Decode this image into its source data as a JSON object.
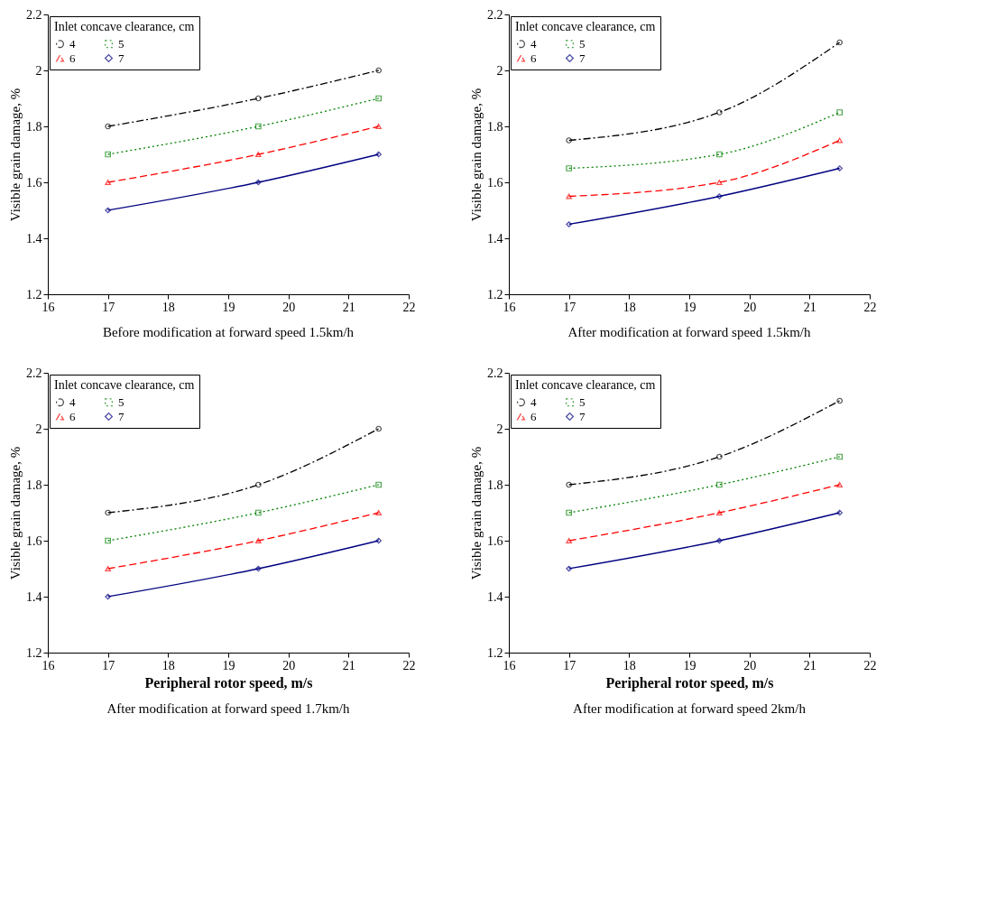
{
  "chart_data": [
    {
      "type": "line",
      "ylabel": "Visible grain damage, %",
      "legend_title": "Inlet concave clearance, cm",
      "legend": "top left",
      "grid": false,
      "x": [
        17,
        19.5,
        21.5
      ],
      "xlim": [
        16,
        22
      ],
      "xticks": [
        16,
        17,
        18,
        19,
        20,
        21,
        22
      ],
      "ylim": [
        1.2,
        2.2
      ],
      "yticks": [
        1.2,
        1.4,
        1.6,
        1.8,
        2,
        2.2
      ],
      "annotations": [
        "Before modification at forward speed 1.5km/h"
      ],
      "series": [
        {
          "name": "4",
          "color": "#000000",
          "line_style": "dashdot",
          "marker": "circle",
          "values": [
            1.8,
            1.9,
            2.0
          ]
        },
        {
          "name": "5",
          "color": "#008000",
          "line_style": "dotted",
          "marker": "square",
          "values": [
            1.7,
            1.8,
            1.9
          ]
        },
        {
          "name": "6",
          "color": "#ff0000",
          "line_style": "dashed",
          "marker": "triangle",
          "values": [
            1.6,
            1.7,
            1.8
          ]
        },
        {
          "name": "7",
          "color": "#000080",
          "line_style": "solid",
          "marker": "diamond",
          "values": [
            1.5,
            1.6,
            1.7
          ]
        }
      ]
    },
    {
      "type": "line",
      "ylabel": "Visible grain damage, %",
      "legend_title": "Inlet concave clearance, cm",
      "legend": "top left",
      "grid": false,
      "x": [
        17,
        19.5,
        21.5
      ],
      "xlim": [
        16,
        22
      ],
      "xticks": [
        16,
        17,
        18,
        19,
        20,
        21,
        22
      ],
      "ylim": [
        1.2,
        2.2
      ],
      "yticks": [
        1.2,
        1.4,
        1.6,
        1.8,
        2,
        2.2
      ],
      "annotations": [
        "After modification at forward speed 1.5km/h"
      ],
      "series": [
        {
          "name": "4",
          "color": "#000000",
          "line_style": "dashdot",
          "marker": "circle",
          "values": [
            1.75,
            1.85,
            2.1
          ]
        },
        {
          "name": "5",
          "color": "#008000",
          "line_style": "dotted",
          "marker": "square",
          "values": [
            1.65,
            1.7,
            1.85
          ]
        },
        {
          "name": "6",
          "color": "#ff0000",
          "line_style": "dashed",
          "marker": "triangle",
          "values": [
            1.55,
            1.6,
            1.75
          ]
        },
        {
          "name": "7",
          "color": "#000080",
          "line_style": "solid",
          "marker": "diamond",
          "values": [
            1.45,
            1.55,
            1.65
          ]
        }
      ]
    },
    {
      "type": "line",
      "xlabel": "Peripheral rotor speed, m/s",
      "ylabel": "Visible grain damage, %",
      "legend_title": "Inlet concave clearance, cm",
      "legend": "top left",
      "grid": false,
      "x": [
        17,
        19.5,
        21.5
      ],
      "xlim": [
        16,
        22
      ],
      "xticks": [
        16,
        17,
        18,
        19,
        20,
        21,
        22
      ],
      "ylim": [
        1.2,
        2.2
      ],
      "yticks": [
        1.2,
        1.4,
        1.6,
        1.8,
        2,
        2.2
      ],
      "annotations": [
        "After modification at forward speed 1.7km/h"
      ],
      "series": [
        {
          "name": "4",
          "color": "#000000",
          "line_style": "dashdot",
          "marker": "circle",
          "values": [
            1.7,
            1.8,
            2.0
          ]
        },
        {
          "name": "5",
          "color": "#008000",
          "line_style": "dotted",
          "marker": "square",
          "values": [
            1.6,
            1.7,
            1.8
          ]
        },
        {
          "name": "6",
          "color": "#ff0000",
          "line_style": "dashed",
          "marker": "triangle",
          "values": [
            1.5,
            1.6,
            1.7
          ]
        },
        {
          "name": "7",
          "color": "#000080",
          "line_style": "solid",
          "marker": "diamond",
          "values": [
            1.4,
            1.5,
            1.6
          ]
        }
      ]
    },
    {
      "type": "line",
      "xlabel": "Peripheral rotor speed, m/s",
      "ylabel": "Visible grain damage, %",
      "legend_title": "Inlet concave clearance, cm",
      "legend": "top left",
      "grid": false,
      "x": [
        17,
        19.5,
        21.5
      ],
      "xlim": [
        16,
        22
      ],
      "xticks": [
        16,
        17,
        18,
        19,
        20,
        21,
        22
      ],
      "ylim": [
        1.2,
        2.2
      ],
      "yticks": [
        1.2,
        1.4,
        1.6,
        1.8,
        2,
        2.2
      ],
      "annotations": [
        "After modification at forward speed 2km/h"
      ],
      "series": [
        {
          "name": "4",
          "color": "#000000",
          "line_style": "dashdot",
          "marker": "circle",
          "values": [
            1.8,
            1.9,
            2.1
          ]
        },
        {
          "name": "5",
          "color": "#008000",
          "line_style": "dotted",
          "marker": "square",
          "values": [
            1.7,
            1.8,
            1.9
          ]
        },
        {
          "name": "6",
          "color": "#ff0000",
          "line_style": "dashed",
          "marker": "triangle",
          "values": [
            1.6,
            1.7,
            1.8
          ]
        },
        {
          "name": "7",
          "color": "#000080",
          "line_style": "solid",
          "marker": "diamond",
          "values": [
            1.5,
            1.6,
            1.7
          ]
        }
      ]
    }
  ]
}
